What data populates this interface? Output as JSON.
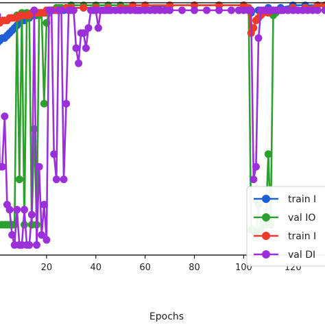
{
  "chart_data": {
    "type": "line",
    "title": "",
    "xlabel": "Epochs",
    "ylabel": "",
    "xlim": [
      0,
      133
    ],
    "ylim": [
      0,
      1
    ],
    "xticks": [
      20,
      40,
      60,
      80,
      100,
      120
    ],
    "grid": false,
    "legend_position": "lower-right",
    "series": [
      {
        "name": "train I",
        "color": "#1f5fd6",
        "x": [
          0,
          1,
          2,
          3,
          4,
          5,
          6,
          7,
          8,
          9,
          10,
          11,
          12,
          13,
          14,
          15,
          16,
          17,
          18,
          19,
          20,
          21,
          22,
          23,
          24,
          25,
          26,
          27,
          28,
          29,
          30,
          35,
          40,
          45,
          50,
          55,
          60,
          70,
          80,
          90,
          100,
          103,
          106,
          110,
          115,
          120,
          125,
          130,
          133
        ],
        "y": [
          0.84,
          0.85,
          0.86,
          0.86,
          0.87,
          0.88,
          0.89,
          0.9,
          0.91,
          0.92,
          0.93,
          0.93,
          0.94,
          0.94,
          0.95,
          0.95,
          0.95,
          0.96,
          0.96,
          0.96,
          0.96,
          0.97,
          0.97,
          0.97,
          0.97,
          0.97,
          0.97,
          0.97,
          0.98,
          0.98,
          0.98,
          0.98,
          0.98,
          0.98,
          0.98,
          0.98,
          0.98,
          0.99,
          0.99,
          0.99,
          0.99,
          0.96,
          0.97,
          0.98,
          0.98,
          0.99,
          0.99,
          0.99,
          0.99
        ]
      },
      {
        "name": "val IO",
        "color": "#2ca02c",
        "x": [
          0,
          1,
          2,
          3,
          4,
          5,
          6,
          7,
          8,
          9,
          10,
          11,
          12,
          13,
          14,
          15,
          16,
          17,
          18,
          19,
          20,
          21,
          22,
          23,
          24,
          25,
          26,
          28,
          30,
          35,
          40,
          45,
          50,
          55,
          60,
          70,
          80,
          90,
          100,
          102,
          103,
          104,
          105,
          106,
          107,
          108,
          109,
          110,
          111,
          112,
          113,
          115,
          120,
          125,
          130,
          133
        ],
        "y": [
          0.12,
          0.12,
          0.12,
          0.12,
          0.12,
          0.12,
          0.12,
          0.12,
          0.95,
          0.3,
          0.96,
          0.12,
          0.96,
          0.95,
          0.12,
          0.5,
          0.12,
          0.95,
          0.96,
          0.6,
          0.92,
          0.96,
          0.97,
          0.97,
          0.98,
          0.98,
          0.98,
          0.98,
          0.99,
          0.99,
          0.99,
          0.99,
          0.99,
          0.99,
          0.99,
          0.99,
          0.99,
          0.99,
          0.99,
          0.98,
          0.1,
          0.1,
          0.08,
          0.2,
          0.1,
          0.12,
          0.12,
          0.4,
          0.12,
          0.95,
          0.96,
          0.97,
          0.98,
          0.98,
          0.99,
          0.99
        ]
      },
      {
        "name": "train I",
        "color": "#ef3b2c",
        "x": [
          0,
          1,
          2,
          3,
          4,
          5,
          6,
          7,
          8,
          9,
          10,
          11,
          12,
          13,
          14,
          15,
          16,
          17,
          18,
          19,
          20,
          21,
          22,
          23,
          24,
          25,
          26,
          28,
          30,
          35,
          40,
          45,
          50,
          55,
          60,
          70,
          80,
          90,
          100,
          102,
          103,
          104,
          105,
          106,
          107,
          108,
          110,
          115,
          120,
          125,
          130,
          133
        ],
        "y": [
          0.92,
          0.92,
          0.93,
          0.93,
          0.93,
          0.94,
          0.94,
          0.94,
          0.94,
          0.95,
          0.95,
          0.95,
          0.95,
          0.95,
          0.96,
          0.96,
          0.96,
          0.96,
          0.96,
          0.96,
          0.97,
          0.97,
          0.97,
          0.97,
          0.97,
          0.97,
          0.97,
          0.98,
          0.98,
          0.98,
          0.98,
          0.98,
          0.98,
          0.99,
          0.99,
          0.99,
          0.99,
          0.99,
          0.99,
          0.98,
          0.88,
          0.9,
          0.93,
          0.94,
          0.95,
          0.96,
          0.96,
          0.97,
          0.98,
          0.98,
          0.99,
          0.99
        ]
      },
      {
        "name": "val DI",
        "color": "#9b30d9",
        "x": [
          0,
          1,
          2,
          3,
          4,
          5,
          6,
          7,
          8,
          9,
          10,
          11,
          12,
          13,
          14,
          15,
          16,
          17,
          18,
          19,
          20,
          21,
          22,
          23,
          24,
          25,
          26,
          27,
          28,
          29,
          30,
          31,
          32,
          33,
          34,
          35,
          36,
          37,
          38,
          39,
          40,
          41,
          42,
          43,
          44,
          45,
          46,
          48,
          50,
          52,
          54,
          56,
          57,
          58,
          60,
          62,
          64,
          66,
          68,
          70,
          75,
          80,
          85,
          90,
          95,
          98,
          100,
          102,
          103,
          104,
          105,
          106,
          107,
          108,
          109,
          110,
          111,
          112,
          113,
          114,
          115,
          116,
          118,
          120,
          122,
          124,
          126,
          128,
          130,
          133
        ],
        "y": [
          0.95,
          0.35,
          0.35,
          0.55,
          0.2,
          0.18,
          0.08,
          0.04,
          0.18,
          0.04,
          0.04,
          0.18,
          0.04,
          0.04,
          0.16,
          0.97,
          0.04,
          0.35,
          0.08,
          0.2,
          0.06,
          0.97,
          0.97,
          0.4,
          0.3,
          0.97,
          0.97,
          0.3,
          0.6,
          0.97,
          0.97,
          0.97,
          0.82,
          0.76,
          0.88,
          0.88,
          0.82,
          0.9,
          0.97,
          0.97,
          0.97,
          0.9,
          0.97,
          0.97,
          0.97,
          0.97,
          0.97,
          0.97,
          0.97,
          0.97,
          0.97,
          0.97,
          0.97,
          0.97,
          0.97,
          0.97,
          0.97,
          0.97,
          0.97,
          0.97,
          0.97,
          0.97,
          0.97,
          0.97,
          0.97,
          0.97,
          0.97,
          0.97,
          0.97,
          0.3,
          0.35,
          0.86,
          0.97,
          0.97,
          0.97,
          0.97,
          0.97,
          0.97,
          0.97,
          0.97,
          0.97,
          0.97,
          0.97,
          0.97,
          0.97,
          0.97,
          0.97,
          0.97,
          0.97,
          0.97
        ]
      }
    ]
  }
}
